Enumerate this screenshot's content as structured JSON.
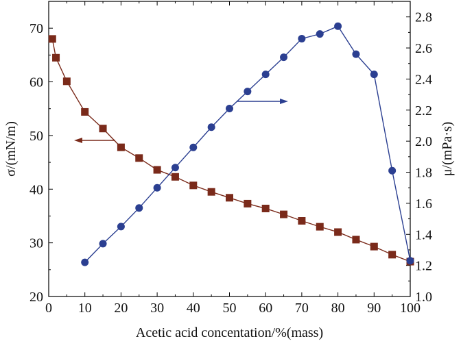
{
  "chart_data": {
    "type": "line",
    "title": "",
    "xlabel": "Acetic acid concentation/%(mass)",
    "ylabel_left": "σ/(mN/m)",
    "ylabel_right": "μ/(mPa·s)",
    "xlim": [
      0,
      100
    ],
    "ylim_left": [
      20,
      75
    ],
    "ylim_right": [
      1.0,
      2.9
    ],
    "x_ticks": [
      0,
      10,
      20,
      30,
      40,
      50,
      60,
      70,
      80,
      90,
      100
    ],
    "y_left_ticks": [
      20,
      30,
      40,
      50,
      60,
      70
    ],
    "y_right_ticks": [
      "1.0",
      "1.2",
      "1.4",
      "1.6",
      "1.8",
      "2.0",
      "2.2",
      "2.4",
      "2.6",
      "2.8"
    ],
    "grid": false,
    "series": [
      {
        "axis": "left",
        "marker": "square",
        "color": "#7a2a1a",
        "x": [
          1,
          2,
          5,
          10,
          15,
          20,
          25,
          30,
          35,
          40,
          45,
          50,
          55,
          60,
          65,
          70,
          75,
          80,
          85,
          90,
          95,
          100
        ],
        "values": [
          68.0,
          64.5,
          60.1,
          54.4,
          51.3,
          47.8,
          45.8,
          43.6,
          42.3,
          40.7,
          39.5,
          38.4,
          37.3,
          36.4,
          35.3,
          34.1,
          33.0,
          32.0,
          30.6,
          29.3,
          27.8,
          26.5
        ]
      },
      {
        "axis": "right",
        "marker": "circle",
        "color": "#2b3f91",
        "x": [
          10,
          15,
          20,
          25,
          30,
          35,
          40,
          45,
          50,
          55,
          60,
          65,
          70,
          75,
          80,
          85,
          90,
          95,
          100
        ],
        "values": [
          1.22,
          1.34,
          1.45,
          1.57,
          1.7,
          1.83,
          1.96,
          2.09,
          2.21,
          2.32,
          2.43,
          2.54,
          2.66,
          2.69,
          2.74,
          2.56,
          2.43,
          1.81,
          1.23
        ]
      }
    ],
    "annotations": [
      {
        "type": "arrow",
        "direction": "left",
        "series": "left",
        "color": "#7a2a1a"
      },
      {
        "type": "arrow",
        "direction": "right",
        "series": "right",
        "color": "#2b3f91"
      }
    ]
  }
}
